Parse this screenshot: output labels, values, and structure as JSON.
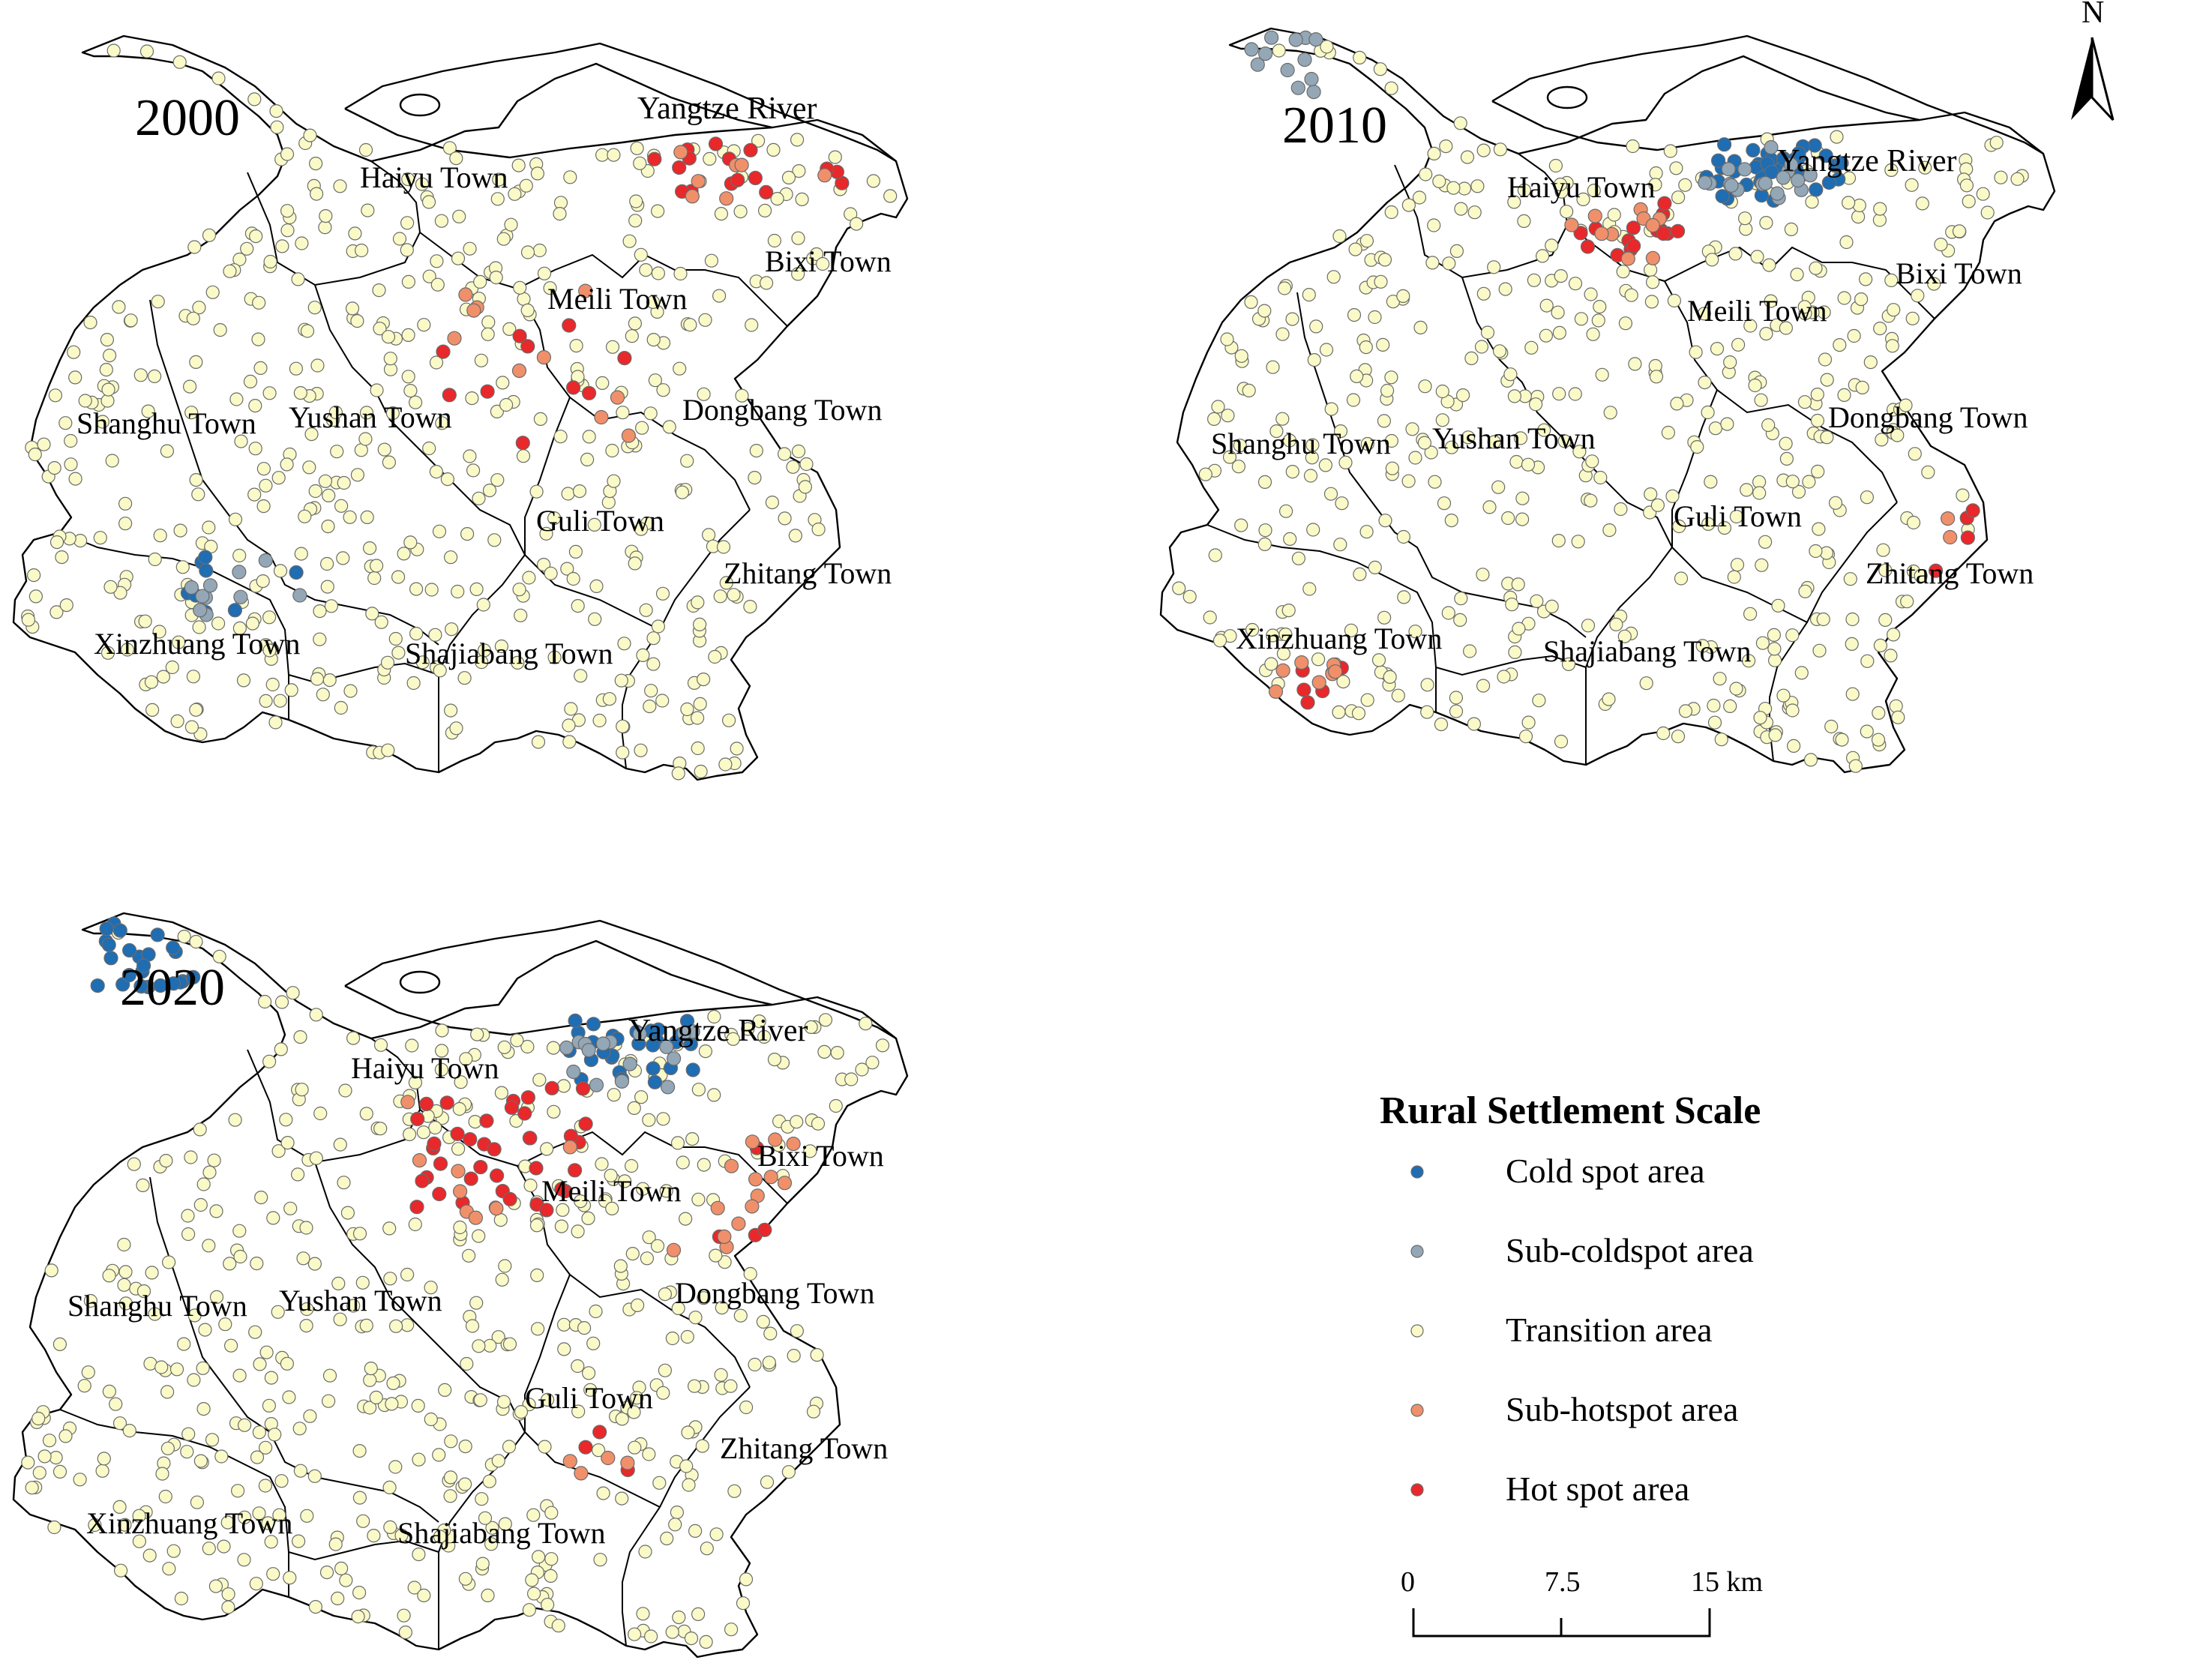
{
  "classes": {
    "cold": {
      "label": "Cold spot area",
      "color": "#1f6db3"
    },
    "subcold": {
      "label": "Sub-coldspot area",
      "color": "#93a7b6"
    },
    "transition": {
      "label": "Transition area",
      "color": "#fafac8"
    },
    "subhot": {
      "label": "Sub-hotspot area",
      "color": "#f0906a"
    },
    "hot": {
      "label": "Hot spot area",
      "color": "#e8282a"
    }
  },
  "legend": {
    "title": "Rural Settlement Scale",
    "order": [
      "cold",
      "subcold",
      "transition",
      "subhot",
      "hot"
    ]
  },
  "scale_bar": {
    "ticks": [
      "0",
      "7.5",
      "15 km"
    ]
  },
  "north_arrow": {
    "label": "N"
  },
  "river_label": "Yangtze River",
  "town_names": [
    "Haiyu Town",
    "Bixi Town",
    "Meili Town",
    "Yushan Town",
    "Shanghu Town",
    "Dongbang Town",
    "Guli Town",
    "Zhitang Town",
    "Xinzhuang Town",
    "Shajiabang Town"
  ],
  "panels": [
    {
      "year": "2000",
      "clusters": [
        {
          "class": "hot",
          "count": 16,
          "area": "Bixi Town (north)"
        },
        {
          "class": "subhot",
          "count": 7,
          "area": "Bixi Town (north)"
        },
        {
          "class": "hot",
          "count": 10,
          "area": "Guli Town (west) / Yushan Town (east)"
        },
        {
          "class": "subhot",
          "count": 10,
          "area": "Guli Town (west) / Yushan Town (east)"
        },
        {
          "class": "cold",
          "count": 8,
          "area": "Xinzhuang Town"
        },
        {
          "class": "subcold",
          "count": 10,
          "area": "Xinzhuang Town"
        }
      ]
    },
    {
      "year": "2010",
      "clusters": [
        {
          "class": "cold",
          "count": 38,
          "area": "Bixi Town (northwest)"
        },
        {
          "class": "subcold",
          "count": 18,
          "area": "Bixi Town (northwest)"
        },
        {
          "class": "subcold",
          "count": 12,
          "area": "Haiyu Town (north tip)"
        },
        {
          "class": "hot",
          "count": 15,
          "area": "Meili Town"
        },
        {
          "class": "subhot",
          "count": 10,
          "area": "Meili Town"
        },
        {
          "class": "hot",
          "count": 6,
          "area": "Xinzhuang Town (south)"
        },
        {
          "class": "subhot",
          "count": 7,
          "area": "Xinzhuang Town (south)"
        },
        {
          "class": "hot",
          "count": 4,
          "area": "Zhitang Town"
        },
        {
          "class": "subhot",
          "count": 2,
          "area": "Zhitang Town"
        }
      ]
    },
    {
      "year": "2020",
      "clusters": [
        {
          "class": "cold",
          "count": 25,
          "area": "Haiyu Town (north tip)"
        },
        {
          "class": "cold",
          "count": 28,
          "area": "Bixi Town (northwest)"
        },
        {
          "class": "subcold",
          "count": 16,
          "area": "Bixi Town (northwest)"
        },
        {
          "class": "hot",
          "count": 38,
          "area": "Meili Town / Yushan Town"
        },
        {
          "class": "subhot",
          "count": 8,
          "area": "Meili Town / Yushan Town"
        },
        {
          "class": "hot",
          "count": 4,
          "area": "Dongbang Town"
        },
        {
          "class": "subhot",
          "count": 14,
          "area": "Dongbang Town"
        },
        {
          "class": "hot",
          "count": 3,
          "area": "Guli Town"
        },
        {
          "class": "subhot",
          "count": 4,
          "area": "Guli Town"
        }
      ]
    }
  ]
}
